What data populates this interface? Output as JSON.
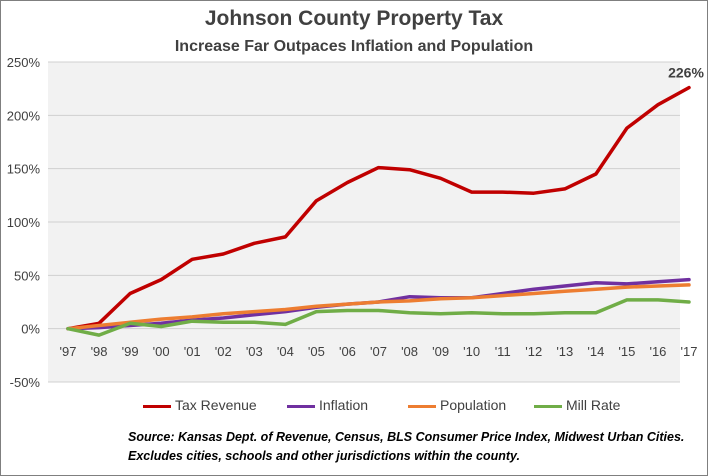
{
  "chart_data": {
    "type": "line",
    "title": "Johnson County Property Tax",
    "subtitle": "Increase Far Outpaces Inflation and Population",
    "categories": [
      "'97",
      "'98",
      "'99",
      "'00",
      "'01",
      "'02",
      "'03",
      "'04",
      "'05",
      "'06",
      "'07",
      "'08",
      "'09",
      "'10",
      "'11",
      "'12",
      "'13",
      "'14",
      "'15",
      "'16",
      "'17"
    ],
    "ylim": [
      -50,
      250
    ],
    "yticks": [
      "250%",
      "200%",
      "150%",
      "100%",
      "50%",
      "0%",
      "-50%"
    ],
    "ytick_values": [
      250,
      200,
      150,
      100,
      50,
      0,
      -50
    ],
    "grid": true,
    "legend": "bottom",
    "series": [
      {
        "name": "Tax Revenue",
        "color": "#c00000",
        "values": [
          0,
          5,
          33,
          46,
          65,
          70,
          80,
          86,
          120,
          137,
          151,
          149,
          141,
          128,
          128,
          127,
          131,
          145,
          188,
          210,
          226
        ]
      },
      {
        "name": "Inflation",
        "color": "#7030a0",
        "values": [
          0,
          1,
          3,
          5,
          8,
          10,
          13,
          16,
          20,
          23,
          25,
          30,
          29,
          29,
          33,
          37,
          40,
          43,
          42,
          44,
          46
        ]
      },
      {
        "name": "Population",
        "color": "#ed7d31",
        "values": [
          0,
          3,
          6,
          9,
          11,
          14,
          16,
          18,
          21,
          23,
          25,
          26,
          28,
          29,
          31,
          33,
          35,
          37,
          39,
          40,
          41
        ]
      },
      {
        "name": "Mill Rate",
        "color": "#70ad47",
        "values": [
          0,
          -6,
          5,
          2,
          7,
          6,
          6,
          4,
          16,
          17,
          17,
          15,
          14,
          15,
          14,
          14,
          15,
          15,
          27,
          27,
          25
        ]
      }
    ],
    "annotations": [
      {
        "series": "Tax Revenue",
        "category": "'17",
        "text": "226%"
      }
    ]
  },
  "source_text": "Source: Kansas Dept. of Revenue, Census, BLS Consumer Price Index, Midwest Urban Cities.  Excludes cities, schools and other jurisdictions within the county."
}
